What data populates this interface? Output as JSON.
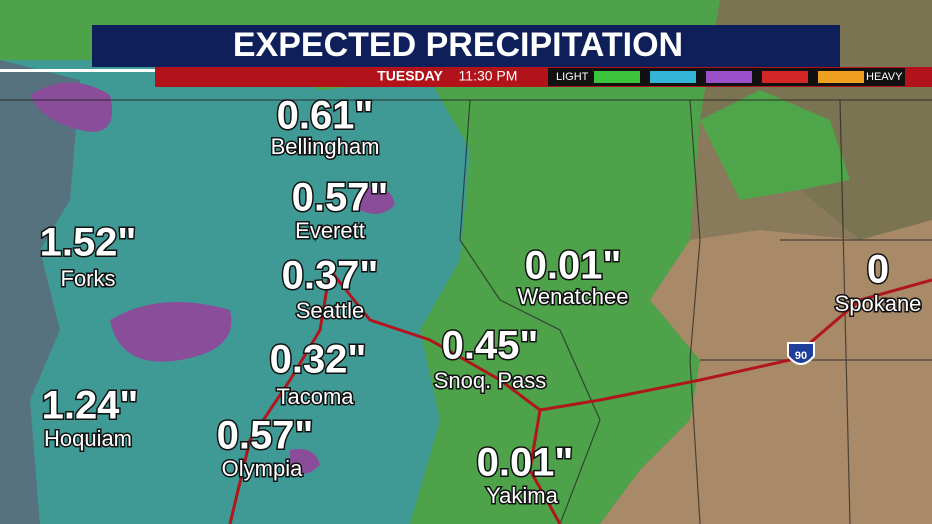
{
  "header": {
    "title": "EXPECTED PRECIPITATION",
    "day": "TUESDAY",
    "time": "11:30 PM"
  },
  "legend": {
    "light": "LIGHT",
    "heavy": "HEAVY"
  },
  "shield": "90",
  "cities": [
    {
      "name": "Bellingham",
      "amount": "0.61\""
    },
    {
      "name": "Everett",
      "amount": "0.57\""
    },
    {
      "name": "Forks",
      "amount": "1.52\""
    },
    {
      "name": "Seattle",
      "amount": "0.37\""
    },
    {
      "name": "Wenatchee",
      "amount": "0.01\""
    },
    {
      "name": "Spokane",
      "amount": "0"
    },
    {
      "name": "Snoq. Pass",
      "amount": "0.45\""
    },
    {
      "name": "Tacoma",
      "amount": "0.32\""
    },
    {
      "name": "Hoquiam",
      "amount": "1.24\""
    },
    {
      "name": "Olympia",
      "amount": "0.57\""
    },
    {
      "name": "Yakima",
      "amount": "0.01\""
    }
  ]
}
